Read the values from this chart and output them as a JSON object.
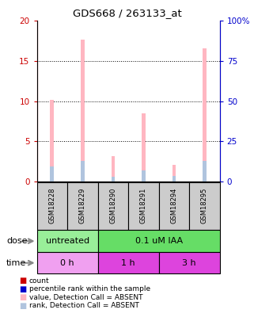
{
  "title": "GDS668 / 263133_at",
  "samples": [
    "GSM18228",
    "GSM18229",
    "GSM18290",
    "GSM18291",
    "GSM18294",
    "GSM18295"
  ],
  "pink_values": [
    10.2,
    17.7,
    3.1,
    8.5,
    2.1,
    16.6
  ],
  "blue_values": [
    1.9,
    2.6,
    0.55,
    1.4,
    0.7,
    2.6
  ],
  "ylim_left": [
    0,
    20
  ],
  "ylim_right": [
    0,
    100
  ],
  "yticks_left": [
    0,
    5,
    10,
    15,
    20
  ],
  "yticks_right": [
    0,
    25,
    50,
    75,
    100
  ],
  "ytick_labels_left": [
    "0",
    "5",
    "10",
    "15",
    "20"
  ],
  "ytick_labels_right": [
    "0",
    "25",
    "50",
    "75",
    "100%"
  ],
  "dose_labels": [
    {
      "text": "untreated",
      "start": 0,
      "end": 2,
      "color": "#99ee99"
    },
    {
      "text": "0.1 uM IAA",
      "start": 2,
      "end": 6,
      "color": "#66dd66"
    }
  ],
  "time_labels": [
    {
      "text": "0 h",
      "start": 0,
      "end": 2,
      "color": "#f0a0f0"
    },
    {
      "text": "1 h",
      "start": 2,
      "end": 4,
      "color": "#dd44dd"
    },
    {
      "text": "3 h",
      "start": 4,
      "end": 6,
      "color": "#dd44dd"
    }
  ],
  "bar_width": 0.12,
  "pink_color": "#ffb6c1",
  "blue_color": "#b0c4de",
  "left_tick_color": "#cc0000",
  "right_tick_color": "#0000cc",
  "sample_box_color": "#cccccc",
  "legend_items": [
    {
      "color": "#cc0000",
      "label": "count"
    },
    {
      "color": "#0000cc",
      "label": "percentile rank within the sample"
    },
    {
      "color": "#ffb6c1",
      "label": "value, Detection Call = ABSENT"
    },
    {
      "color": "#b0c4de",
      "label": "rank, Detection Call = ABSENT"
    }
  ]
}
